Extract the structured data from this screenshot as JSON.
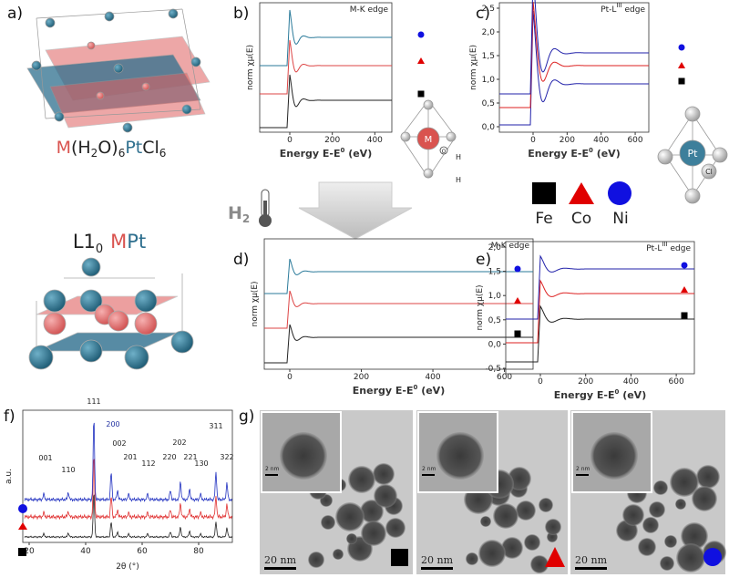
{
  "panel_labels": [
    "a)",
    "b)",
    "c)",
    "d)",
    "e)",
    "f)",
    "g)"
  ],
  "a": {
    "precursor": [
      "M",
      "(H",
      "2",
      "O)",
      "6",
      "Pt",
      "Cl",
      "6"
    ],
    "alloy": [
      "L1",
      "0",
      "M",
      "Pt"
    ]
  },
  "b": {
    "edge": "M-K edge",
    "ylabel": "norm χμ(E)",
    "xlabel": [
      "Energy E-E",
      "0",
      " (eV)"
    ],
    "xticks": [
      "0",
      "200",
      "400"
    ]
  },
  "molecule_m": {
    "center": "M",
    "oxygen": "O",
    "h1": "H",
    "h2": "H"
  },
  "c": {
    "edge": [
      "Pt-L",
      "III",
      " edge"
    ],
    "ylabel": "norm χμ(E)",
    "xlabel": [
      "Energy E-E",
      "0",
      " (eV)"
    ],
    "xticks": [
      "0",
      "200",
      "400",
      "600"
    ],
    "yticks": [
      "2,5",
      "2,0",
      "1,5",
      "1,0",
      "0,5",
      "0,0"
    ]
  },
  "molecule_pt": {
    "center": "Pt",
    "ligand": "Cl"
  },
  "legend": {
    "items": [
      "Fe",
      "Co",
      "Ni"
    ]
  },
  "reduction": {
    "gas": [
      "H",
      "2"
    ]
  },
  "d": {
    "edge": "M-K edge",
    "ylabel": "norm χμ(E)",
    "xlabel": [
      "Energy E-E",
      "0",
      " (eV)"
    ],
    "xticks": [
      "0",
      "200",
      "400",
      "600"
    ]
  },
  "e": {
    "edge": [
      "Pt-L",
      "III",
      " edge"
    ],
    "ylabel": "norm χμ(E)",
    "xlabel": [
      "Energy E-E",
      "0",
      " (eV)"
    ],
    "xticks": [
      "0",
      "200",
      "400",
      "600"
    ],
    "yticks": [
      "2,0",
      "1,5",
      "1,0",
      "0,5",
      "0,0",
      "-0,5"
    ]
  },
  "f": {
    "ylabel": "a.u.",
    "xlabel": "2θ (°)",
    "xticks": [
      "20",
      "40",
      "60",
      "80"
    ],
    "peaks": [
      "001",
      "110",
      "111",
      "200",
      "002",
      "201",
      "112",
      "220",
      "202",
      "221",
      "130",
      "311",
      "322"
    ]
  },
  "g": {
    "inset_scale": "2 nm",
    "scale": "20 nm"
  }
}
